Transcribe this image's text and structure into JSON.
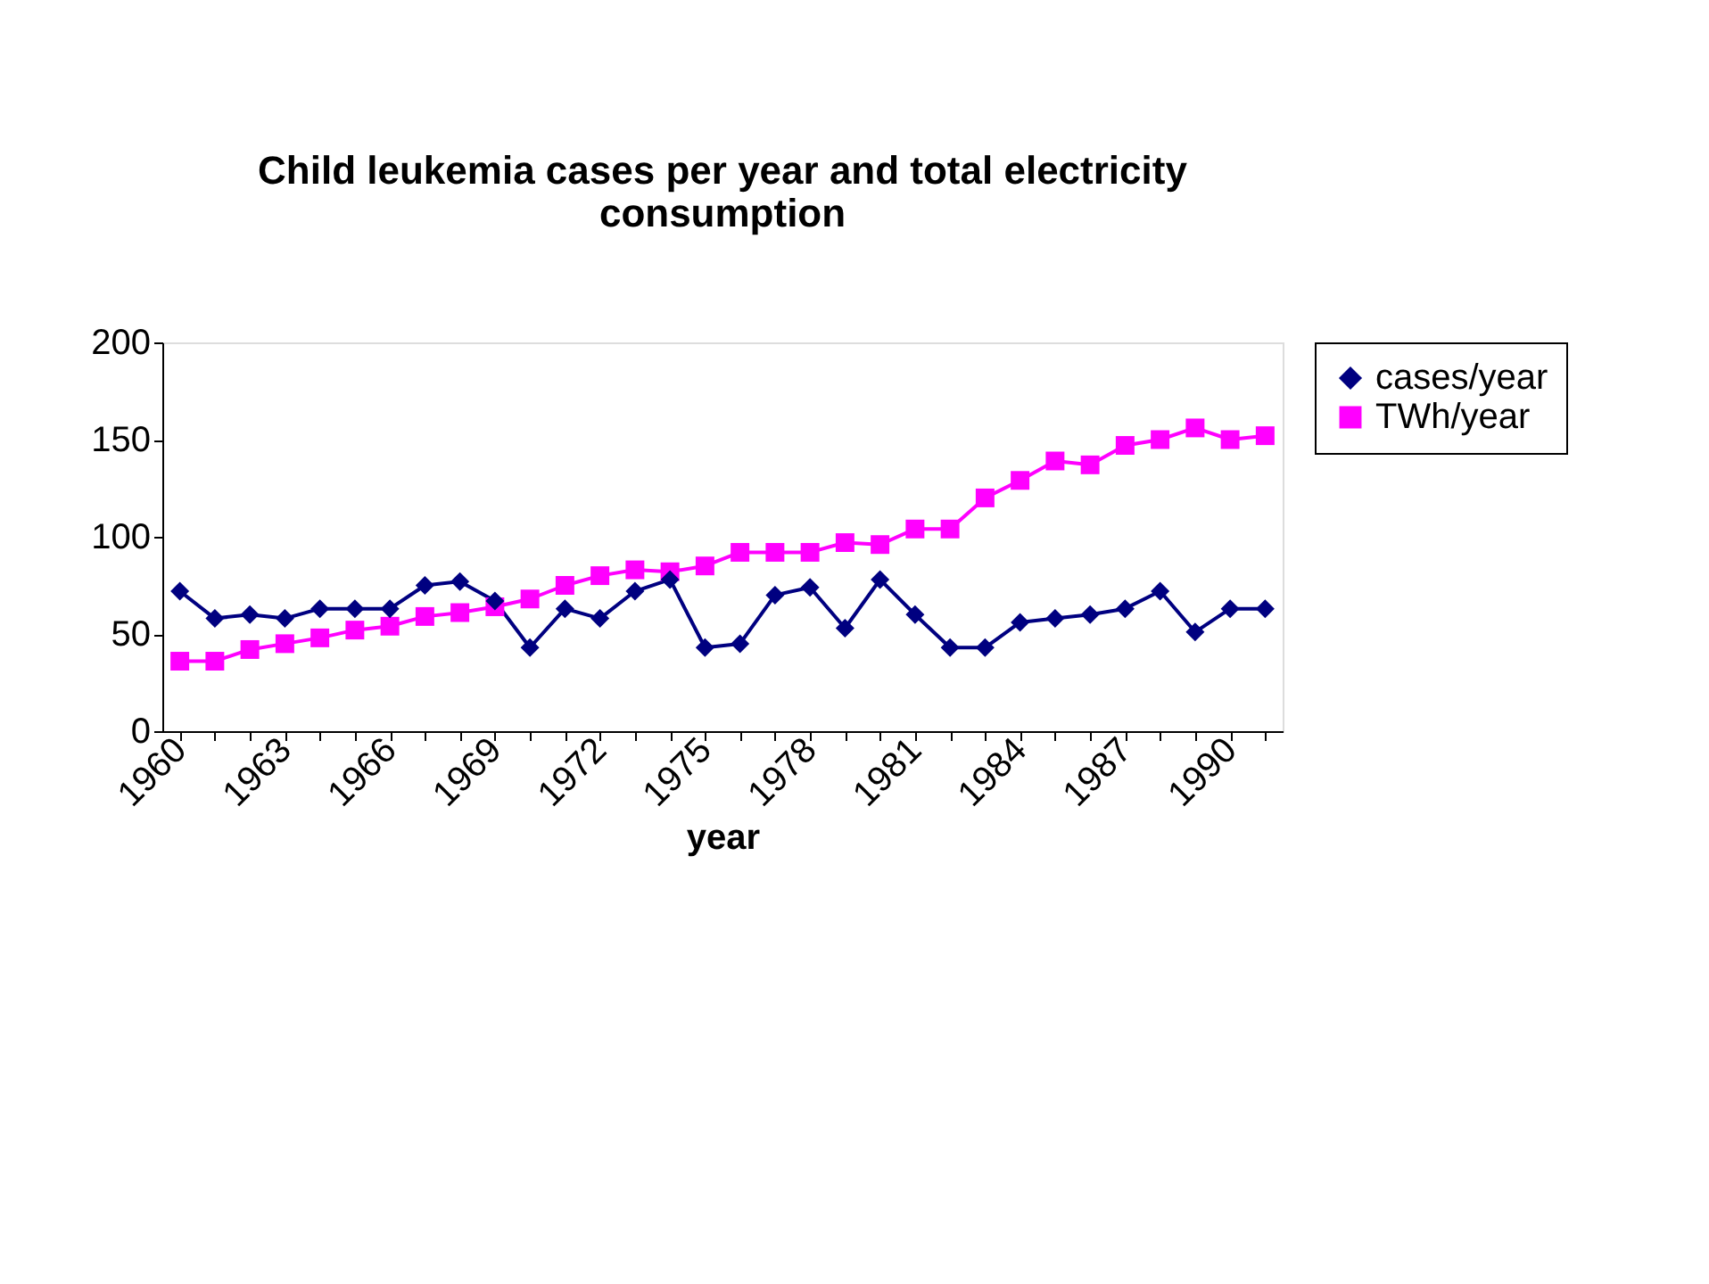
{
  "chart_data": {
    "type": "line",
    "title": "Child leukemia cases per year and total electricity consumption",
    "xlabel": "year",
    "categories": [
      "1960",
      null,
      null,
      "1963",
      null,
      null,
      "1966",
      null,
      null,
      "1969",
      null,
      null,
      "1972",
      null,
      null,
      "1975",
      null,
      null,
      "1978",
      null,
      null,
      "1981",
      null,
      null,
      "1984",
      null,
      null,
      "1987",
      null,
      null,
      "1990",
      null
    ],
    "series": [
      {
        "name": "cases/year",
        "color": "#000080",
        "marker": "diamond",
        "values": [
          72,
          58,
          60,
          58,
          63,
          63,
          63,
          75,
          77,
          67,
          43,
          63,
          58,
          72,
          78,
          43,
          45,
          70,
          74,
          53,
          78,
          60,
          43,
          43,
          56,
          58,
          60,
          63,
          72,
          51,
          63,
          63
        ]
      },
      {
        "name": "TWh/year",
        "color": "#ff00ff",
        "marker": "square",
        "values": [
          36,
          36,
          42,
          45,
          48,
          52,
          54,
          59,
          61,
          64,
          68,
          75,
          80,
          83,
          82,
          85,
          92,
          92,
          92,
          97,
          96,
          104,
          104,
          120,
          129,
          139,
          137,
          147,
          150,
          156,
          150,
          152
        ]
      }
    ],
    "ylim": [
      0,
      200
    ],
    "yticks": [
      0,
      50,
      100,
      150,
      200
    ],
    "grid": false,
    "legend": "right"
  }
}
